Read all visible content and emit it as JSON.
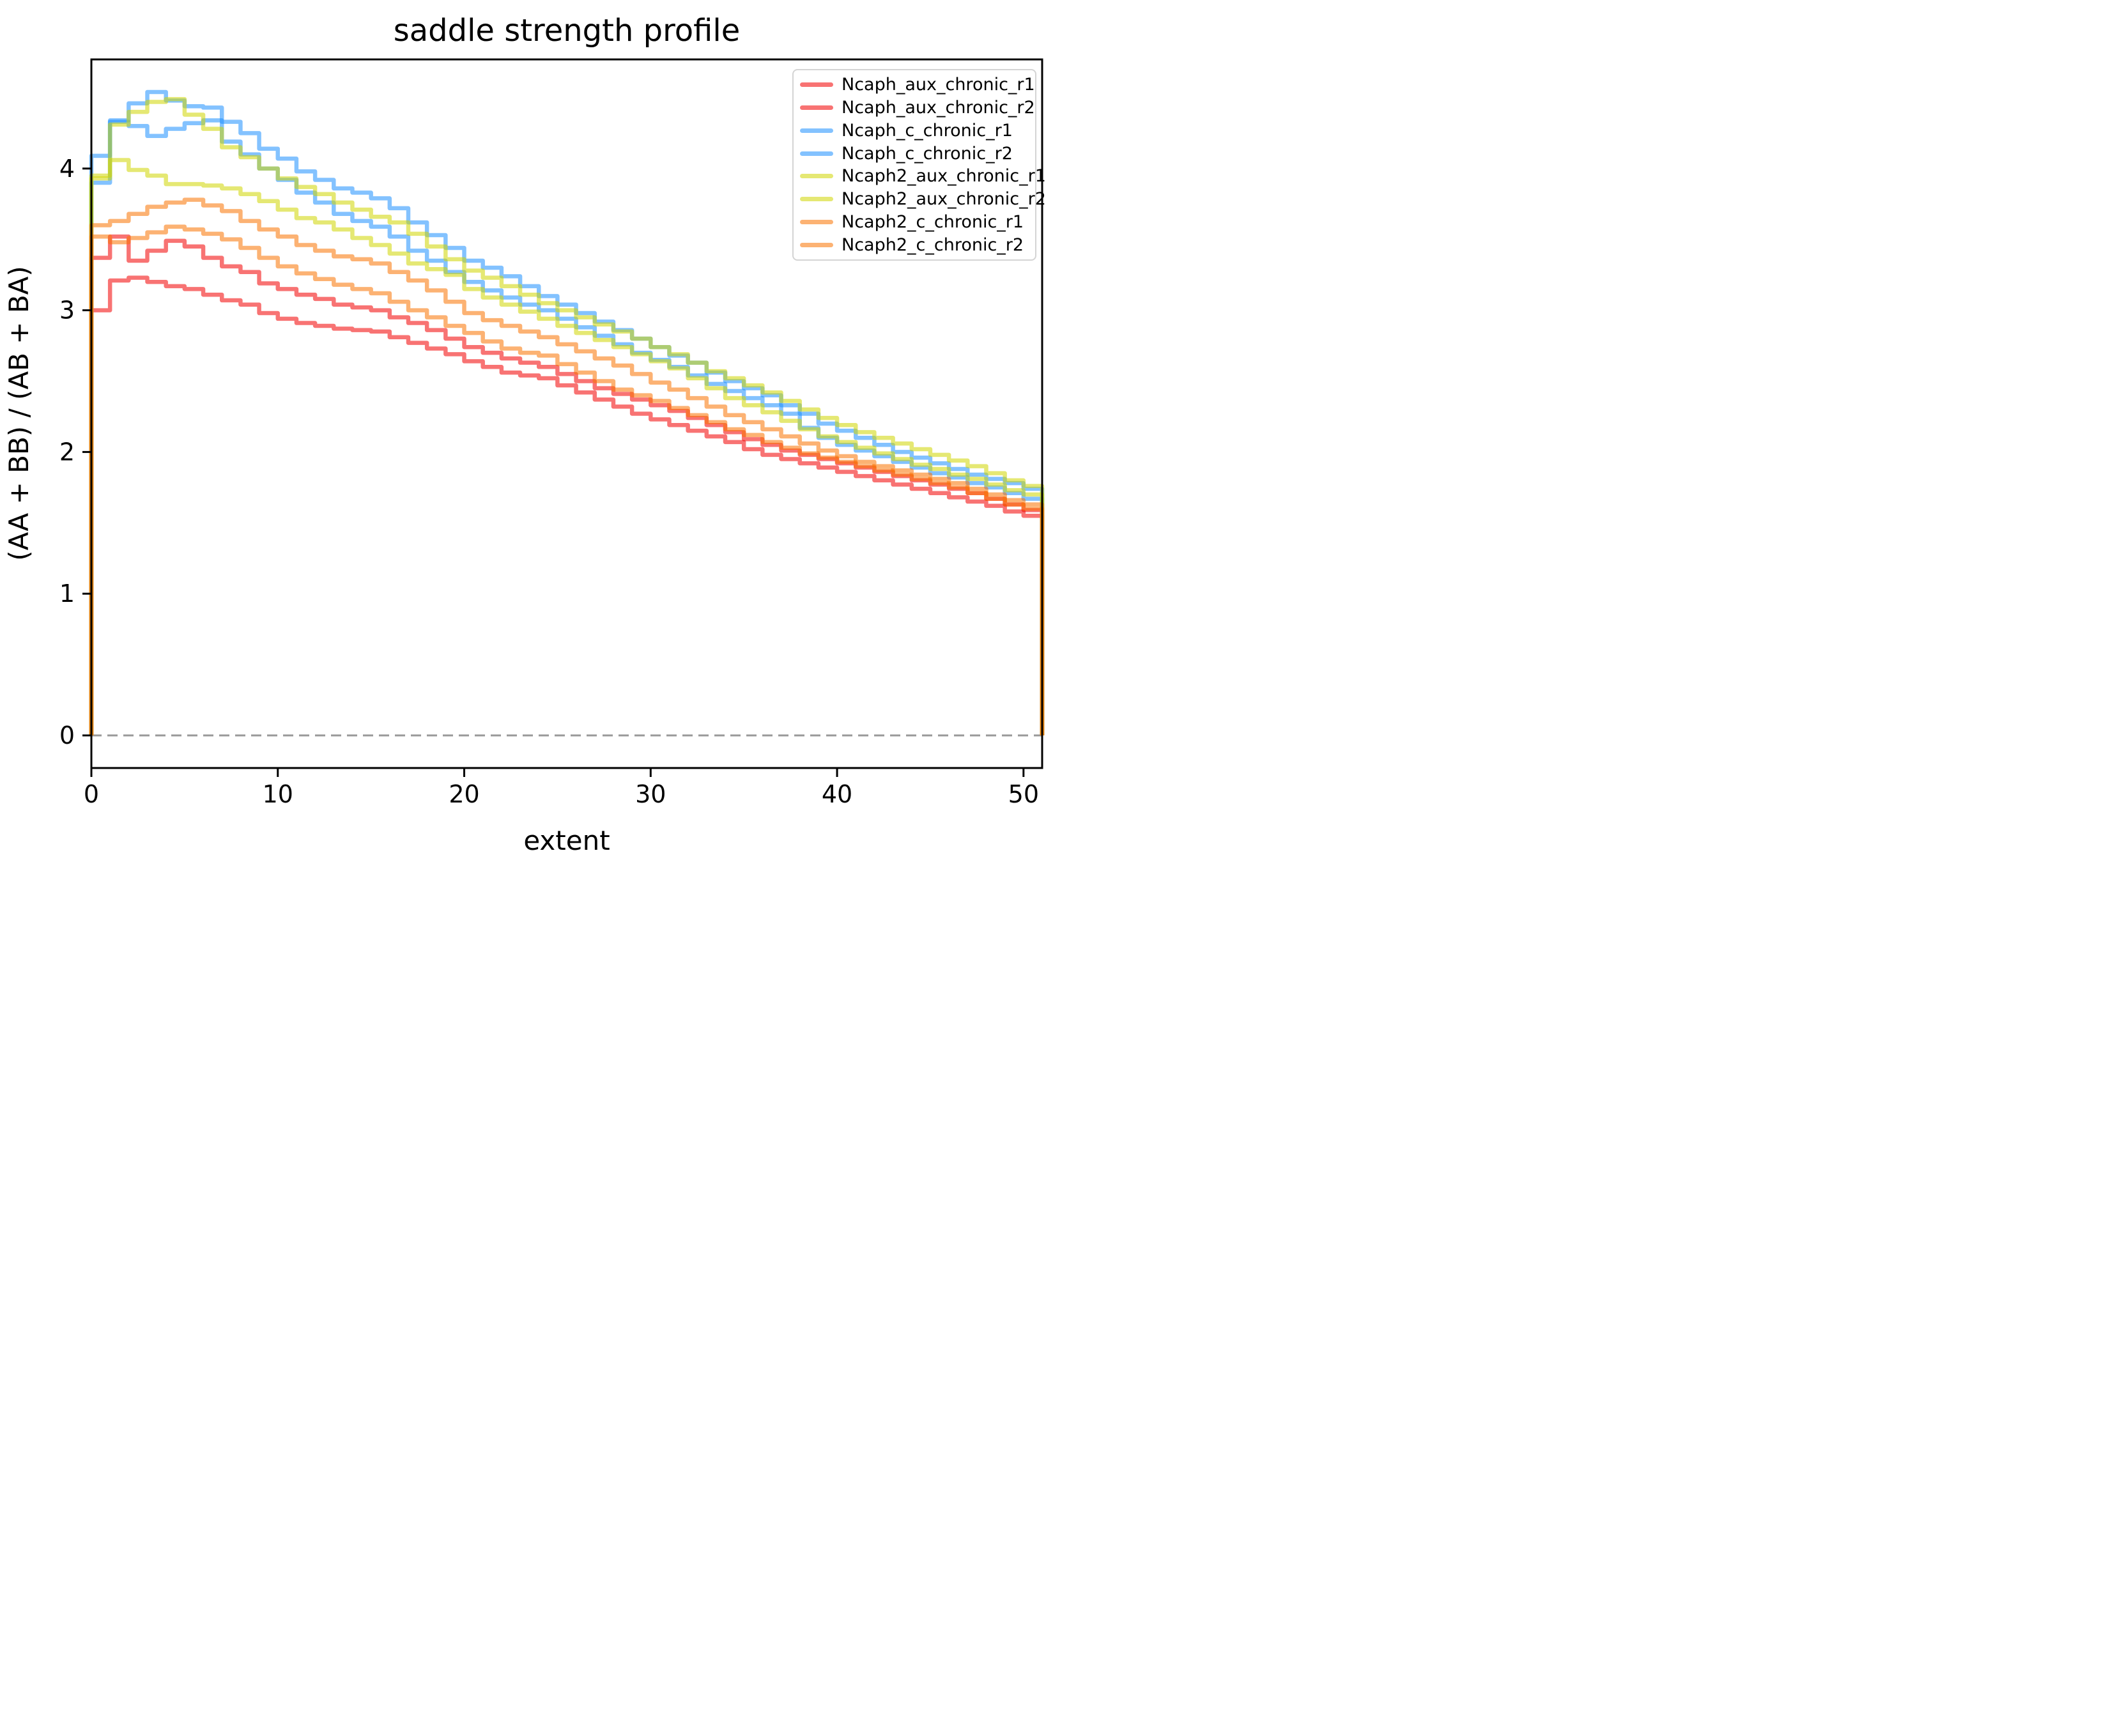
{
  "chart_data": {
    "type": "line",
    "subtype": "step-histogram",
    "title": "saddle strength profile",
    "xlabel": "extent",
    "ylabel": "(AA + BB) / (AB + BA)",
    "xlim": [
      0,
      51
    ],
    "ylim": [
      -0.23,
      4.77
    ],
    "xticks": [
      0,
      10,
      20,
      30,
      40,
      50
    ],
    "yticks": [
      0,
      1,
      2,
      3,
      4
    ],
    "grid": false,
    "legend_position": "upper right",
    "zero_line": {
      "y": 0,
      "style": "dashed",
      "color": "#999999"
    },
    "alpha": 0.55,
    "x_start": 0,
    "bin_width": 1,
    "series": [
      {
        "name": "Ncaph_aux_chronic_r1",
        "color": "#f20000",
        "values": [
          3.37,
          3.52,
          3.35,
          3.42,
          3.49,
          3.45,
          3.37,
          3.31,
          3.27,
          3.19,
          3.15,
          3.11,
          3.08,
          3.04,
          3.02,
          3.0,
          2.95,
          2.91,
          2.86,
          2.8,
          2.74,
          2.7,
          2.66,
          2.63,
          2.6,
          2.55,
          2.5,
          2.45,
          2.41,
          2.37,
          2.33,
          2.29,
          2.24,
          2.19,
          2.14,
          2.09,
          2.05,
          2.01,
          1.98,
          1.95,
          1.92,
          1.89,
          1.86,
          1.83,
          1.8,
          1.77,
          1.74,
          1.71,
          1.67,
          1.63,
          1.59
        ]
      },
      {
        "name": "Ncaph_aux_chronic_r2",
        "color": "#f20000",
        "values": [
          3.0,
          3.21,
          3.23,
          3.2,
          3.17,
          3.15,
          3.11,
          3.07,
          3.04,
          2.98,
          2.94,
          2.91,
          2.89,
          2.87,
          2.86,
          2.85,
          2.81,
          2.77,
          2.73,
          2.69,
          2.64,
          2.6,
          2.56,
          2.54,
          2.52,
          2.47,
          2.42,
          2.37,
          2.32,
          2.27,
          2.23,
          2.19,
          2.15,
          2.11,
          2.07,
          2.02,
          1.98,
          1.95,
          1.92,
          1.89,
          1.86,
          1.83,
          1.8,
          1.77,
          1.74,
          1.71,
          1.68,
          1.65,
          1.62,
          1.58,
          1.55
        ]
      },
      {
        "name": "Ncaph_c_chronic_r1",
        "color": "#1e90ff",
        "values": [
          4.09,
          4.34,
          4.46,
          4.54,
          4.48,
          4.44,
          4.43,
          4.33,
          4.25,
          4.14,
          4.07,
          3.98,
          3.92,
          3.86,
          3.83,
          3.79,
          3.72,
          3.62,
          3.53,
          3.44,
          3.35,
          3.3,
          3.24,
          3.17,
          3.1,
          3.04,
          2.98,
          2.92,
          2.86,
          2.8,
          2.74,
          2.68,
          2.63,
          2.56,
          2.5,
          2.45,
          2.4,
          2.33,
          2.27,
          2.2,
          2.15,
          2.1,
          2.05,
          2.0,
          1.96,
          1.92,
          1.88,
          1.84,
          1.81,
          1.78,
          1.74
        ]
      },
      {
        "name": "Ncaph_c_chronic_r2",
        "color": "#1e90ff",
        "values": [
          3.9,
          4.33,
          4.3,
          4.23,
          4.28,
          4.32,
          4.34,
          4.19,
          4.1,
          4.0,
          3.92,
          3.83,
          3.76,
          3.68,
          3.63,
          3.59,
          3.52,
          3.42,
          3.35,
          3.27,
          3.2,
          3.14,
          3.09,
          3.04,
          3.0,
          2.94,
          2.88,
          2.82,
          2.76,
          2.7,
          2.65,
          2.6,
          2.54,
          2.48,
          2.43,
          2.38,
          2.33,
          2.27,
          2.17,
          2.1,
          2.05,
          2.01,
          1.97,
          1.93,
          1.89,
          1.85,
          1.82,
          1.78,
          1.75,
          1.71,
          1.67
        ]
      },
      {
        "name": "Ncaph2_aux_chronic_r1",
        "color": "#cfd500",
        "values": [
          3.95,
          4.31,
          4.4,
          4.47,
          4.49,
          4.38,
          4.28,
          4.15,
          4.08,
          4.0,
          3.93,
          3.87,
          3.82,
          3.76,
          3.71,
          3.66,
          3.62,
          3.54,
          3.45,
          3.36,
          3.28,
          3.23,
          3.17,
          3.11,
          3.05,
          3.0,
          2.95,
          2.9,
          2.85,
          2.8,
          2.74,
          2.69,
          2.63,
          2.57,
          2.52,
          2.47,
          2.42,
          2.36,
          2.3,
          2.24,
          2.19,
          2.14,
          2.1,
          2.06,
          2.02,
          1.98,
          1.94,
          1.9,
          1.85,
          1.8,
          1.76
        ]
      },
      {
        "name": "Ncaph2_aux_chronic_r2",
        "color": "#cfd500",
        "values": [
          3.93,
          4.06,
          3.99,
          3.95,
          3.89,
          3.89,
          3.88,
          3.86,
          3.82,
          3.77,
          3.71,
          3.65,
          3.62,
          3.57,
          3.51,
          3.46,
          3.4,
          3.33,
          3.29,
          3.25,
          3.15,
          3.09,
          3.04,
          2.99,
          2.94,
          2.89,
          2.84,
          2.79,
          2.74,
          2.69,
          2.64,
          2.59,
          2.52,
          2.45,
          2.38,
          2.33,
          2.28,
          2.22,
          2.16,
          2.11,
          2.07,
          2.03,
          1.99,
          1.95,
          1.91,
          1.88,
          1.84,
          1.81,
          1.77,
          1.73,
          1.7
        ]
      },
      {
        "name": "Ncaph2_c_chronic_r1",
        "color": "#fa7300",
        "values": [
          3.6,
          3.63,
          3.68,
          3.73,
          3.76,
          3.78,
          3.74,
          3.7,
          3.63,
          3.57,
          3.52,
          3.46,
          3.42,
          3.38,
          3.36,
          3.33,
          3.27,
          3.21,
          3.14,
          3.06,
          2.98,
          2.93,
          2.89,
          2.85,
          2.81,
          2.76,
          2.71,
          2.66,
          2.61,
          2.55,
          2.49,
          2.44,
          2.38,
          2.32,
          2.26,
          2.21,
          2.16,
          2.11,
          2.06,
          2.01,
          1.97,
          1.93,
          1.9,
          1.87,
          1.84,
          1.81,
          1.78,
          1.74,
          1.7,
          1.66,
          1.63
        ]
      },
      {
        "name": "Ncaph2_c_chronic_r2",
        "color": "#fa7300",
        "values": [
          3.52,
          3.48,
          3.51,
          3.55,
          3.59,
          3.57,
          3.54,
          3.5,
          3.44,
          3.37,
          3.31,
          3.26,
          3.22,
          3.18,
          3.15,
          3.12,
          3.06,
          3.0,
          2.95,
          2.89,
          2.84,
          2.78,
          2.73,
          2.7,
          2.68,
          2.62,
          2.56,
          2.5,
          2.44,
          2.4,
          2.36,
          2.31,
          2.26,
          2.21,
          2.16,
          2.12,
          2.07,
          2.03,
          1.99,
          1.96,
          1.93,
          1.9,
          1.87,
          1.84,
          1.81,
          1.78,
          1.75,
          1.71,
          1.67,
          1.63,
          1.6
        ]
      }
    ]
  },
  "legend": {
    "labels": [
      "Ncaph_aux_chronic_r1",
      "Ncaph_aux_chronic_r2",
      "Ncaph_c_chronic_r1",
      "Ncaph_c_chronic_r2",
      "Ncaph2_aux_chronic_r1",
      "Ncaph2_aux_chronic_r2",
      "Ncaph2_c_chronic_r1",
      "Ncaph2_c_chronic_r2"
    ]
  },
  "palette": {
    "red": "#f20000",
    "blue": "#1e90ff",
    "yellow_green": "#cfd500",
    "orange": "#fa7300",
    "spine": "#000000",
    "dashed_line": "#999999",
    "legend_border": "#d4d4d4"
  }
}
